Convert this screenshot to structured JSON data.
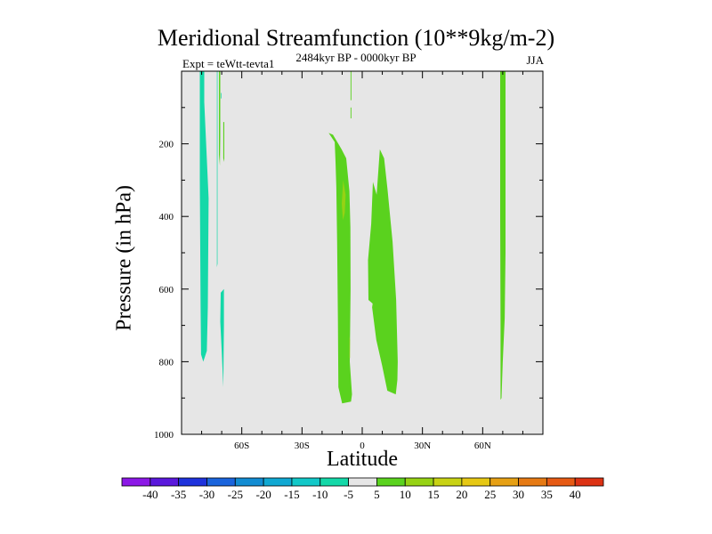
{
  "chart_data": {
    "type": "contour",
    "title": "Meridional Streamfunction (10**9kg/m-2)",
    "subtitle_left": "Expt = teWtt-tevta1",
    "subtitle_center": "2484kyr BP - 0000kyr BP",
    "subtitle_right": "JJA",
    "xlabel": "Latitude",
    "ylabel": "Pressure (in hPa)",
    "xlim": [
      -90,
      90
    ],
    "ylim": [
      1000,
      0
    ],
    "background_color": "#e6e6e6",
    "x_ticks": [
      {
        "value": -60,
        "label": "60S"
      },
      {
        "value": -30,
        "label": "30S"
      },
      {
        "value": 0,
        "label": "0"
      },
      {
        "value": 30,
        "label": "30N"
      },
      {
        "value": 60,
        "label": "60N"
      }
    ],
    "y_ticks": [
      {
        "value": 200,
        "label": "200"
      },
      {
        "value": 400,
        "label": "400"
      },
      {
        "value": 600,
        "label": "600"
      },
      {
        "value": 800,
        "label": "800"
      },
      {
        "value": 1000,
        "label": "1000"
      }
    ],
    "colorbar": {
      "labels": [
        "-40",
        "-35",
        "-30",
        "-25",
        "-20",
        "-15",
        "-10",
        "-5",
        "5",
        "10",
        "15",
        "20",
        "25",
        "30",
        "35",
        "40"
      ],
      "colors": [
        "#8c18e6",
        "#5a18dc",
        "#1e32dc",
        "#1a64dc",
        "#128cd2",
        "#10a8d2",
        "#12c8c8",
        "#14d8a8",
        "#e6e6e6",
        "#5ad21e",
        "#96d214",
        "#c8d214",
        "#e6c814",
        "#e6a014",
        "#e67a14",
        "#e65a14",
        "#dc3214"
      ]
    },
    "contours": [
      {
        "name": "sh-negative-band-1",
        "color": "#14d8a8",
        "points": [
          [
            -80.9,
            0
          ],
          [
            -78.7,
            0
          ],
          [
            -78.7,
            85
          ],
          [
            -76.5,
            350
          ],
          [
            -76.9,
            650
          ],
          [
            -77.4,
            770
          ],
          [
            -79.2,
            800
          ],
          [
            -80.3,
            780
          ],
          [
            -80.5,
            650
          ],
          [
            -80.9,
            300
          ],
          [
            -80.9,
            0
          ]
        ]
      },
      {
        "name": "sh-negative-band-2",
        "color": "#14d8a8",
        "points": [
          [
            -72.4,
            0
          ],
          [
            -72.1,
            0
          ],
          [
            -72.1,
            120
          ],
          [
            -72.1,
            530
          ],
          [
            -72.4,
            540
          ],
          [
            -72.4,
            0
          ]
        ]
      },
      {
        "name": "sh-negative-band-3",
        "color": "#14d8a8",
        "points": [
          [
            -70.5,
            60
          ],
          [
            -70.2,
            60
          ],
          [
            -70.2,
            75
          ],
          [
            -70.5,
            75
          ],
          [
            -70.5,
            60
          ]
        ]
      },
      {
        "name": "sh-negative-band-4",
        "color": "#14d8a8",
        "points": [
          [
            -70.5,
            610
          ],
          [
            -68.9,
            600
          ],
          [
            -68.9,
            700
          ],
          [
            -69.2,
            870
          ],
          [
            -70.0,
            770
          ],
          [
            -70.7,
            690
          ],
          [
            -70.5,
            610
          ]
        ]
      },
      {
        "name": "sh-positive-sliver-1",
        "color": "#5ad21e",
        "points": [
          [
            -71.4,
            0
          ],
          [
            -70.7,
            0
          ],
          [
            -70.7,
            180
          ],
          [
            -70.9,
            260
          ],
          [
            -71.4,
            230
          ],
          [
            -71.4,
            0
          ]
        ]
      },
      {
        "name": "sh-positive-sliver-2",
        "color": "#5ad21e",
        "points": [
          [
            -69.2,
            140
          ],
          [
            -68.7,
            140
          ],
          [
            -68.7,
            250
          ],
          [
            -69.2,
            240
          ],
          [
            -69.2,
            140
          ]
        ]
      },
      {
        "name": "eq-positive-sliver-top",
        "color": "#5ad21e",
        "points": [
          [
            -5.8,
            0
          ],
          [
            -5.4,
            0
          ],
          [
            -5.4,
            80
          ],
          [
            -5.8,
            80
          ],
          [
            -5.8,
            0
          ]
        ]
      },
      {
        "name": "eq-positive-sliver-mid",
        "color": "#5ad21e",
        "points": [
          [
            -5.8,
            100
          ],
          [
            -5.4,
            100
          ],
          [
            -5.4,
            130
          ],
          [
            -5.8,
            130
          ],
          [
            -5.8,
            100
          ]
        ]
      },
      {
        "name": "eq-positive-cell-west",
        "color": "#5ad21e",
        "points": [
          [
            -16.7,
            170
          ],
          [
            -14.6,
            175
          ],
          [
            -10.3,
            215
          ],
          [
            -8.0,
            240
          ],
          [
            -6.4,
            330
          ],
          [
            -5.9,
            430
          ],
          [
            -5.8,
            600
          ],
          [
            -6.2,
            800
          ],
          [
            -5.1,
            890
          ],
          [
            -5.6,
            910
          ],
          [
            -10.0,
            915
          ],
          [
            -11.9,
            870
          ],
          [
            -12.1,
            690
          ],
          [
            -12.5,
            470
          ],
          [
            -12.9,
            320
          ],
          [
            -13.3,
            250
          ],
          [
            -13.7,
            195
          ],
          [
            -16.7,
            170
          ]
        ]
      },
      {
        "name": "eq-positive-cell-east",
        "color": "#5ad21e",
        "points": [
          [
            5.3,
            305
          ],
          [
            7.2,
            340
          ],
          [
            8.8,
            215
          ],
          [
            10.9,
            240
          ],
          [
            12.6,
            325
          ],
          [
            15.1,
            470
          ],
          [
            16.9,
            630
          ],
          [
            17.7,
            800
          ],
          [
            17.5,
            850
          ],
          [
            16.7,
            890
          ],
          [
            12.5,
            880
          ],
          [
            9.9,
            810
          ],
          [
            7.0,
            740
          ],
          [
            4.9,
            650
          ],
          [
            5.2,
            640
          ],
          [
            3.1,
            630
          ],
          [
            2.9,
            520
          ],
          [
            4.5,
            420
          ],
          [
            5.3,
            305
          ]
        ]
      },
      {
        "name": "eq-positive-core",
        "color": "#96d214",
        "points": [
          [
            -9.5,
            300
          ],
          [
            -8.3,
            340
          ],
          [
            -8.7,
            390
          ],
          [
            -9.6,
            410
          ],
          [
            -10.2,
            365
          ],
          [
            -9.5,
            300
          ]
        ]
      },
      {
        "name": "eq-positive-core-low",
        "color": "#96d214",
        "points": [
          [
            -6.4,
            730
          ],
          [
            -6.1,
            740
          ],
          [
            -6.1,
            790
          ],
          [
            -6.4,
            790
          ],
          [
            -6.4,
            730
          ]
        ]
      },
      {
        "name": "nh-positive-band",
        "color": "#5ad21e",
        "points": [
          [
            68.7,
            0
          ],
          [
            71.4,
            0
          ],
          [
            71.4,
            150
          ],
          [
            71.4,
            500
          ],
          [
            71.0,
            680
          ],
          [
            70.0,
            800
          ],
          [
            69.4,
            900
          ],
          [
            68.9,
            905
          ],
          [
            68.9,
            700
          ],
          [
            68.7,
            400
          ],
          [
            68.7,
            0
          ]
        ]
      }
    ]
  }
}
